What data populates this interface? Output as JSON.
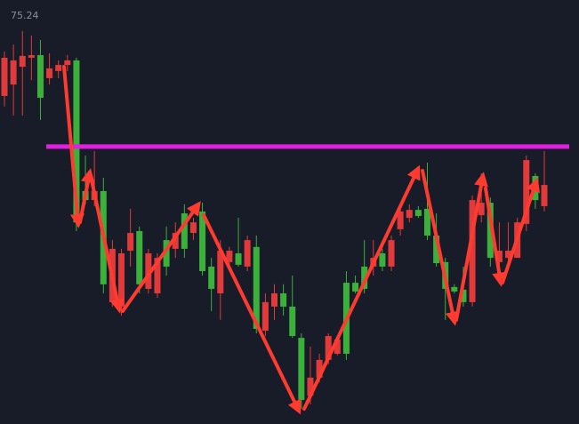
{
  "chart_data": {
    "type": "candlestick",
    "ylim": [
      59.84,
      75.84
    ],
    "yticks": [
      75.24
    ],
    "up_color": "#3bb03b",
    "down_color": "#e03a3a",
    "ohlc": [
      [
        73.66,
        73.89,
        71.82,
        72.22
      ],
      [
        73.56,
        74.16,
        71.48,
        72.65
      ],
      [
        73.73,
        74.67,
        71.48,
        73.32
      ],
      [
        73.76,
        74.5,
        72.82,
        73.66
      ],
      [
        72.15,
        74.33,
        71.31,
        73.76
      ],
      [
        73.26,
        73.83,
        72.65,
        72.89
      ],
      [
        73.39,
        73.56,
        72.89,
        73.16
      ],
      [
        73.56,
        73.76,
        73.16,
        73.39
      ],
      [
        67.45,
        73.66,
        67.12,
        73.56
      ],
      [
        68.29,
        69.97,
        68.13,
        68.63
      ],
      [
        68.63,
        70.14,
        68.06,
        68.29
      ],
      [
        65.11,
        69.13,
        64.77,
        68.63
      ],
      [
        66.45,
        66.78,
        64.27,
        64.44
      ],
      [
        66.28,
        66.45,
        63.93,
        64.27
      ],
      [
        67.05,
        67.96,
        65.78,
        66.38
      ],
      [
        65.11,
        67.29,
        64.77,
        67.12
      ],
      [
        66.28,
        66.45,
        64.77,
        64.94
      ],
      [
        66.11,
        66.28,
        64.6,
        64.77
      ],
      [
        65.78,
        67.29,
        65.44,
        66.78
      ],
      [
        67.05,
        67.45,
        66.11,
        66.45
      ],
      [
        66.45,
        68.13,
        66.11,
        67.79
      ],
      [
        67.45,
        67.62,
        66.78,
        67.05
      ],
      [
        65.61,
        68.19,
        65.44,
        67.86
      ],
      [
        64.94,
        66.11,
        64.1,
        65.78
      ],
      [
        66.38,
        66.78,
        63.77,
        64.77
      ],
      [
        66.38,
        66.52,
        65.78,
        65.95
      ],
      [
        65.85,
        67.62,
        65.78,
        66.28
      ],
      [
        66.78,
        66.95,
        65.61,
        65.78
      ],
      [
        63.43,
        66.95,
        63.26,
        66.52
      ],
      [
        64.44,
        64.77,
        63.16,
        63.36
      ],
      [
        64.77,
        65.11,
        63.77,
        64.27
      ],
      [
        64.27,
        65.11,
        63.93,
        64.77
      ],
      [
        63.16,
        65.44,
        63.09,
        64.27
      ],
      [
        60.75,
        63.26,
        60.41,
        63.09
      ],
      [
        61.59,
        62.76,
        60.58,
        60.91
      ],
      [
        62.26,
        62.49,
        61.42,
        61.59
      ],
      [
        63.16,
        63.26,
        62.09,
        62.26
      ],
      [
        63.03,
        63.16,
        62.43,
        62.49
      ],
      [
        62.49,
        65.61,
        62.26,
        65.17
      ],
      [
        64.84,
        65.44,
        64.77,
        65.17
      ],
      [
        64.94,
        66.78,
        64.77,
        65.78
      ],
      [
        66.11,
        66.78,
        65.44,
        65.78
      ],
      [
        65.78,
        66.45,
        65.61,
        66.28
      ],
      [
        66.78,
        66.95,
        65.61,
        65.78
      ],
      [
        67.86,
        68.13,
        66.95,
        67.19
      ],
      [
        67.92,
        68.13,
        67.45,
        67.62
      ],
      [
        67.69,
        68.06,
        67.62,
        67.92
      ],
      [
        66.95,
        69.7,
        66.78,
        67.96
      ],
      [
        65.91,
        67.79,
        65.78,
        66.95
      ],
      [
        64.94,
        66.11,
        63.77,
        65.95
      ],
      [
        64.84,
        65.11,
        64.77,
        65.01
      ],
      [
        64.44,
        65.78,
        64.27,
        64.91
      ],
      [
        68.29,
        68.46,
        64.27,
        64.44
      ],
      [
        68.19,
        69.3,
        67.45,
        67.72
      ],
      [
        66.11,
        68.39,
        65.78,
        68.19
      ],
      [
        66.38,
        67.45,
        65.78,
        65.95
      ],
      [
        66.38,
        67.45,
        65.95,
        66.11
      ],
      [
        67.45,
        67.62,
        66.11,
        66.11
      ],
      [
        69.8,
        69.97,
        67.12,
        67.39
      ],
      [
        68.29,
        69.3,
        67.96,
        69.2
      ],
      [
        68.86,
        70.14,
        67.86,
        68.06
      ]
    ],
    "lines": [
      {
        "value": 70.31,
        "color": "#e020e0"
      }
    ]
  }
}
